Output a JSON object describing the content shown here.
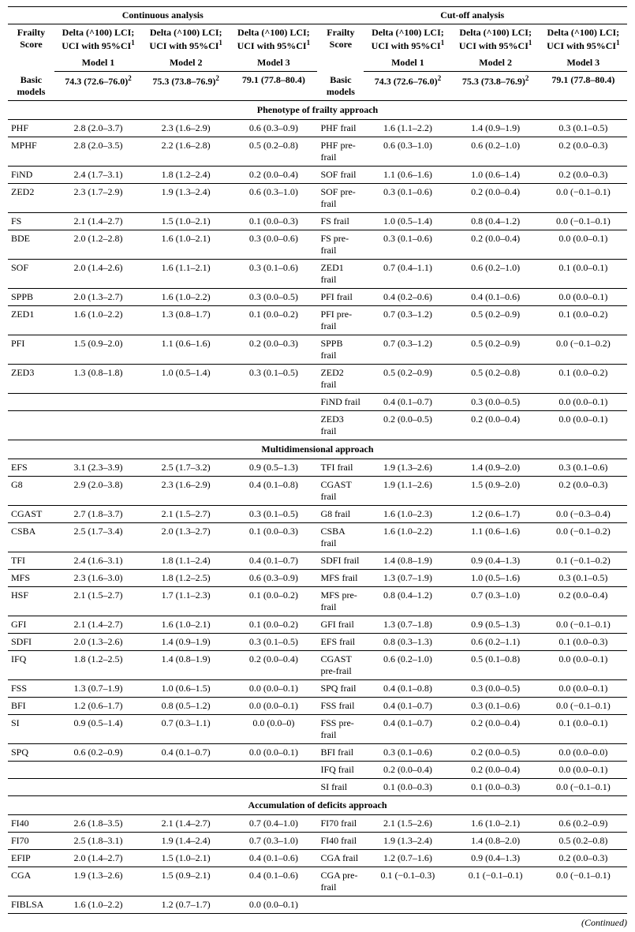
{
  "header": {
    "group_continuous": "Continuous analysis",
    "group_cutoff": "Cut-off analysis",
    "frailty_score": "Frailty Score",
    "delta_line1": "Delta (^100) LCI;",
    "delta_line2": "UCI with 95%CI",
    "sup1": "1",
    "sup2": "2",
    "model1": "Model 1",
    "model2": "Model 2",
    "model3": "Model 3",
    "basic_models": "Basic models",
    "basic_m1": "74.3 (72.6–76.0)",
    "basic_m2": "75.3 (73.8–76.9)",
    "basic_m3": "79.1 (77.8–80.4)"
  },
  "sections": [
    {
      "title": "Phenotype of frailty approach",
      "rows_left": [
        {
          "label": "PHF",
          "m1": "2.8 (2.0–3.7)",
          "m2": "2.3 (1.6–2.9)",
          "m3": "0.6 (0.3–0.9)"
        },
        {
          "label": "MPHF",
          "m1": "2.8 (2.0–3.5)",
          "m2": "2.2 (1.6–2.8)",
          "m3": "0.5 (0.2–0.8)"
        },
        {
          "label": "FiND",
          "m1": "2.4 (1.7–3.1)",
          "m2": "1.8 (1.2–2.4)",
          "m3": "0.2 (0.0–0.4)"
        },
        {
          "label": "ZED2",
          "m1": "2.3 (1.7–2.9)",
          "m2": "1.9 (1.3–2.4)",
          "m3": "0.6 (0.3–1.0)"
        },
        {
          "label": "FS",
          "m1": "2.1 (1.4–2.7)",
          "m2": "1.5 (1.0–2.1)",
          "m3": "0.1 (0.0–0.3)"
        },
        {
          "label": "BDE",
          "m1": "2.0 (1.2–2.8)",
          "m2": "1.6 (1.0–2.1)",
          "m3": "0.3 (0.0–0.6)"
        },
        {
          "label": "SOF",
          "m1": "2.0 (1.4–2.6)",
          "m2": "1.6 (1.1–2.1)",
          "m3": "0.3 (0.1–0.6)"
        },
        {
          "label": "SPPB",
          "m1": "2.0 (1.3–2.7)",
          "m2": "1.6 (1.0–2.2)",
          "m3": "0.3 (0.0–0.5)"
        },
        {
          "label": "ZED1",
          "m1": "1.6 (1.0–2.2)",
          "m2": "1.3 (0.8–1.7)",
          "m3": "0.1 (0.0–0.2)"
        },
        {
          "label": "PFI",
          "m1": "1.5 (0.9–2.0)",
          "m2": "1.1 (0.6–1.6)",
          "m3": "0.2 (0.0–0.3)"
        },
        {
          "label": "ZED3",
          "m1": "1.3 (0.8–1.8)",
          "m2": "1.0 (0.5–1.4)",
          "m3": "0.3 (0.1–0.5)"
        },
        {
          "label": "",
          "m1": "",
          "m2": "",
          "m3": ""
        },
        {
          "label": "",
          "m1": "",
          "m2": "",
          "m3": ""
        }
      ],
      "rows_right": [
        {
          "label": "PHF frail",
          "m1": "1.6 (1.1–2.2)",
          "m2": "1.4 (0.9–1.9)",
          "m3": "0.3 (0.1–0.5)"
        },
        {
          "label": "PHF pre-frail",
          "m1": "0.6 (0.3–1.0)",
          "m2": "0.6 (0.2–1.0)",
          "m3": "0.2 (0.0–0.3)"
        },
        {
          "label": "SOF frail",
          "m1": "1.1 (0.6–1.6)",
          "m2": "1.0 (0.6–1.4)",
          "m3": "0.2 (0.0–0.3)"
        },
        {
          "label": "SOF pre-frail",
          "m1": "0.3 (0.1–0.6)",
          "m2": "0.2 (0.0–0.4)",
          "m3": "0.0 (−0.1–0.1)"
        },
        {
          "label": "FS frail",
          "m1": "1.0 (0.5–1.4)",
          "m2": "0.8 (0.4–1.2)",
          "m3": "0.0 (−0.1–0.1)"
        },
        {
          "label": "FS pre-frail",
          "m1": "0.3 (0.1–0.6)",
          "m2": "0.2 (0.0–0.4)",
          "m3": "0.0 (0.0–0.1)"
        },
        {
          "label": "ZED1 frail",
          "m1": "0.7 (0.4–1.1)",
          "m2": "0.6 (0.2–1.0)",
          "m3": "0.1 (0.0–0.1)"
        },
        {
          "label": "PFI frail",
          "m1": "0.4 (0.2–0.6)",
          "m2": "0.4 (0.1–0.6)",
          "m3": "0.0 (0.0–0.1)"
        },
        {
          "label": "PFI pre-frail",
          "m1": "0.7 (0.3–1.2)",
          "m2": "0.5 (0.2–0.9)",
          "m3": "0.1 (0.0–0.2)"
        },
        {
          "label": "SPPB frail",
          "m1": "0.7 (0.3–1.2)",
          "m2": "0.5 (0.2–0.9)",
          "m3": "0.0 (−0.1–0.2)"
        },
        {
          "label": "ZED2 frail",
          "m1": "0.5 (0.2–0.9)",
          "m2": "0.5 (0.2–0.8)",
          "m3": "0.1 (0.0–0.2)"
        },
        {
          "label": "FiND frail",
          "m1": "0.4 (0.1–0.7)",
          "m2": "0.3 (0.0–0.5)",
          "m3": "0.0 (0.0–0.1)"
        },
        {
          "label": "ZED3 frail",
          "m1": "0.2 (0.0–0.5)",
          "m2": "0.2 (0.0–0.4)",
          "m3": "0.0 (0.0–0.1)"
        }
      ]
    },
    {
      "title": "Multidimensional approach",
      "rows_left": [
        {
          "label": "EFS",
          "m1": "3.1 (2.3–3.9)",
          "m2": "2.5 (1.7–3.2)",
          "m3": "0.9 (0.5–1.3)"
        },
        {
          "label": "G8",
          "m1": "2.9 (2.0–3.8)",
          "m2": "2.3 (1.6–2.9)",
          "m3": "0.4 (0.1–0.8)"
        },
        {
          "label": "CGAST",
          "m1": "2.7 (1.8–3.7)",
          "m2": "2.1 (1.5–2.7)",
          "m3": "0.3 (0.1–0.5)"
        },
        {
          "label": "CSBA",
          "m1": "2.5 (1.7–3.4)",
          "m2": "2.0 (1.3–2.7)",
          "m3": "0.1 (0.0–0.3)"
        },
        {
          "label": "TFI",
          "m1": "2.4 (1.6–3.1)",
          "m2": "1.8 (1.1–2.4)",
          "m3": "0.4 (0.1–0.7)"
        },
        {
          "label": "MFS",
          "m1": "2.3 (1.6–3.0)",
          "m2": "1.8 (1.2–2.5)",
          "m3": "0.6 (0.3–0.9)"
        },
        {
          "label": "HSF",
          "m1": "2.1 (1.5–2.7)",
          "m2": "1.7 (1.1–2.3)",
          "m3": "0.1 (0.0–0.2)"
        },
        {
          "label": "GFI",
          "m1": "2.1 (1.4–2.7)",
          "m2": "1.6 (1.0–2.1)",
          "m3": "0.1 (0.0–0.2)"
        },
        {
          "label": "SDFI",
          "m1": "2.0 (1.3–2.6)",
          "m2": "1.4 (0.9–1.9)",
          "m3": "0.3 (0.1–0.5)"
        },
        {
          "label": "IFQ",
          "m1": "1.8 (1.2–2.5)",
          "m2": "1.4 (0.8–1.9)",
          "m3": "0.2 (0.0–0.4)"
        },
        {
          "label": "FSS",
          "m1": "1.3 (0.7–1.9)",
          "m2": "1.0 (0.6–1.5)",
          "m3": "0.0 (0.0–0.1)"
        },
        {
          "label": "BFI",
          "m1": "1.2 (0.6–1.7)",
          "m2": "0.8 (0.5–1.2)",
          "m3": "0.0 (0.0–0.1)"
        },
        {
          "label": "SI",
          "m1": "0.9 (0.5–1.4)",
          "m2": "0.7 (0.3–1.1)",
          "m3": "0.0 (0.0–0)"
        },
        {
          "label": "SPQ",
          "m1": "0.6 (0.2–0.9)",
          "m2": "0.4 (0.1–0.7)",
          "m3": "0.0 (0.0–0.1)"
        },
        {
          "label": "",
          "m1": "",
          "m2": "",
          "m3": ""
        },
        {
          "label": "",
          "m1": "",
          "m2": "",
          "m3": ""
        }
      ],
      "rows_right": [
        {
          "label": "TFI frail",
          "m1": "1.9 (1.3–2.6)",
          "m2": "1.4 (0.9–2.0)",
          "m3": "0.3 (0.1–0.6)"
        },
        {
          "label": "CGAST frail",
          "m1": "1.9 (1.1–2.6)",
          "m2": "1.5 (0.9–2.0)",
          "m3": "0.2 (0.0–0.3)"
        },
        {
          "label": "G8 frail",
          "m1": "1.6 (1.0–2.3)",
          "m2": "1.2 (0.6–1.7)",
          "m3": "0.0 (−0.3–0.4)"
        },
        {
          "label": "CSBA frail",
          "m1": "1.6 (1.0–2.2)",
          "m2": "1.1 (0.6–1.6)",
          "m3": "0.0 (−0.1–0.2)"
        },
        {
          "label": "SDFI frail",
          "m1": "1.4 (0.8–1.9)",
          "m2": "0.9 (0.4–1.3)",
          "m3": "0.1 (−0.1–0.2)"
        },
        {
          "label": "MFS frail",
          "m1": "1.3 (0.7–1.9)",
          "m2": "1.0 (0.5–1.6)",
          "m3": "0.3 (0.1–0.5)"
        },
        {
          "label": "MFS pre-frail",
          "m1": "0.8 (0.4–1.2)",
          "m2": "0.7 (0.3–1.0)",
          "m3": "0.2 (0.0–0.4)"
        },
        {
          "label": "GFI frail",
          "m1": "1.3 (0.7–1.8)",
          "m2": "0.9 (0.5–1.3)",
          "m3": "0.0 (−0.1–0.1)"
        },
        {
          "label": "EFS frail",
          "m1": "0.8 (0.3–1.3)",
          "m2": "0.6 (0.2–1.1)",
          "m3": "0.1 (0.0–0.3)"
        },
        {
          "label": "CGAST pre-frail",
          "m1": "0.6 (0.2–1.0)",
          "m2": "0.5 (0.1–0.8)",
          "m3": "0.0 (0.0–0.1)"
        },
        {
          "label": "SPQ frail",
          "m1": "0.4 (0.1–0.8)",
          "m2": "0.3 (0.0–0.5)",
          "m3": "0.0 (0.0–0.1)"
        },
        {
          "label": "FSS frail",
          "m1": "0.4 (0.1–0.7)",
          "m2": "0.3 (0.1–0.6)",
          "m3": "0.0 (−0.1–0.1)"
        },
        {
          "label": "FSS pre-frail",
          "m1": "0.4 (0.1–0.7)",
          "m2": "0.2 (0.0–0.4)",
          "m3": "0.1 (0.0–0.1)"
        },
        {
          "label": "BFI frail",
          "m1": "0.3 (0.1–0.6)",
          "m2": "0.2 (0.0–0.5)",
          "m3": "0.0 (0.0–0.0)"
        },
        {
          "label": "IFQ frail",
          "m1": "0.2 (0.0–0.4)",
          "m2": "0.2 (0.0–0.4)",
          "m3": "0.0 (0.0–0.1)"
        },
        {
          "label": "SI frail",
          "m1": "0.1 (0.0–0.3)",
          "m2": "0.1 (0.0–0.3)",
          "m3": "0.0 (−0.1–0.1)"
        }
      ]
    },
    {
      "title": "Accumulation of deficits approach",
      "rows_left": [
        {
          "label": "FI40",
          "m1": "2.6 (1.8–3.5)",
          "m2": "2.1 (1.4–2.7)",
          "m3": "0.7 (0.4–1.0)"
        },
        {
          "label": "FI70",
          "m1": "2.5 (1.8–3.1)",
          "m2": "1.9 (1.4–2.4)",
          "m3": "0.7 (0.3–1.0)"
        },
        {
          "label": "EFIP",
          "m1": "2.0 (1.4–2.7)",
          "m2": "1.5 (1.0–2.1)",
          "m3": "0.4 (0.1–0.6)"
        },
        {
          "label": "CGA",
          "m1": "1.9 (1.3–2.6)",
          "m2": "1.5 (0.9–2.1)",
          "m3": "0.4 (0.1–0.6)"
        },
        {
          "label": "FIBLSA",
          "m1": "1.6 (1.0–2.2)",
          "m2": "1.2 (0.7–1.7)",
          "m3": "0.0 (0.0–0.1)"
        }
      ],
      "rows_right": [
        {
          "label": "FI70 frail",
          "m1": "2.1 (1.5–2.6)",
          "m2": "1.6 (1.0–2.1)",
          "m3": "0.6 (0.2–0.9)"
        },
        {
          "label": "FI40 frail",
          "m1": "1.9 (1.3–2.4)",
          "m2": "1.4 (0.8–2.0)",
          "m3": "0.5 (0.2–0.8)"
        },
        {
          "label": "CGA frail",
          "m1": "1.2 (0.7–1.6)",
          "m2": "0.9 (0.4–1.3)",
          "m3": "0.2 (0.0–0.3)"
        },
        {
          "label": "CGA pre-frail",
          "m1": "0.1 (−0.1–0.3)",
          "m2": "0.1 (−0.1–0.1)",
          "m3": "0.0 (−0.1–0.1)"
        },
        {
          "label": "",
          "m1": "",
          "m2": "",
          "m3": ""
        }
      ]
    }
  ],
  "continued": "(Continued)"
}
